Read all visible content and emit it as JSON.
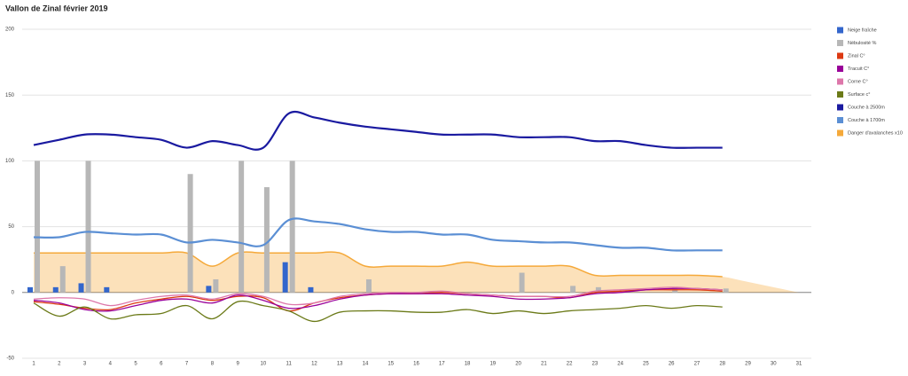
{
  "chart_data": {
    "type": "combo",
    "title": "Vallon de Zinal février 2019",
    "categories": [
      "1",
      "2",
      "3",
      "4",
      "5",
      "6",
      "7",
      "8",
      "9",
      "10",
      "11",
      "12",
      "13",
      "14",
      "15",
      "16",
      "17",
      "18",
      "19",
      "20",
      "21",
      "22",
      "23",
      "24",
      "25",
      "26",
      "27",
      "28",
      "29",
      "30",
      "31"
    ],
    "ylim": [
      -50,
      200
    ],
    "yticks": [
      -50,
      0,
      50,
      100,
      150,
      200
    ],
    "grid": true,
    "legend": "right",
    "series": [
      {
        "name": "Neige fraîche",
        "type": "bar",
        "color": "#3366cc",
        "values": [
          4,
          4,
          7,
          4,
          0,
          0,
          0,
          5,
          0,
          0,
          23,
          4,
          0,
          0,
          0,
          0,
          0,
          0,
          0,
          0,
          0,
          0,
          0,
          0,
          0,
          0,
          0,
          0,
          null,
          null,
          null
        ]
      },
      {
        "name": "Nébulosité %",
        "type": "bar",
        "color": "#b7b7b7",
        "values": [
          100,
          20,
          100,
          0,
          0,
          0,
          90,
          10,
          100,
          80,
          100,
          0,
          0,
          10,
          0,
          0,
          0,
          0,
          0,
          15,
          0,
          5,
          4,
          0,
          0,
          4,
          0,
          3,
          null,
          null,
          null
        ]
      },
      {
        "name": "Zinal C°",
        "type": "line",
        "color": "#dc3912",
        "values": [
          -7,
          -9,
          -12,
          -13,
          -8,
          -5,
          -3,
          -6,
          -3,
          -4,
          -14,
          -8,
          -4,
          -2,
          -1,
          -1,
          0,
          -1,
          -2,
          -3,
          -3,
          -4,
          0,
          1,
          2,
          2,
          2,
          1,
          null,
          null,
          null
        ]
      },
      {
        "name": "Tracuit C°",
        "type": "line",
        "color": "#990099",
        "values": [
          -6,
          -8,
          -13,
          -14,
          -10,
          -6,
          -5,
          -8,
          -2,
          -6,
          -12,
          -10,
          -5,
          -2,
          -1,
          -1,
          -1,
          -2,
          -3,
          -5,
          -5,
          -4,
          -1,
          0,
          2,
          3,
          3,
          2,
          null,
          null,
          null
        ]
      },
      {
        "name": "Corne C°",
        "type": "line",
        "color": "#dd77aa",
        "values": [
          -5,
          -4,
          -5,
          -10,
          -6,
          -3,
          -2,
          -5,
          -1,
          -3,
          -9,
          -8,
          -3,
          -1,
          0,
          0,
          1,
          -1,
          -2,
          -3,
          -3,
          -3,
          1,
          2,
          3,
          4,
          3,
          2,
          null,
          null,
          null
        ]
      },
      {
        "name": "Surface c°",
        "type": "line",
        "color": "#6b7a18",
        "values": [
          -8,
          -18,
          -11,
          -20,
          -17,
          -16,
          -10,
          -20,
          -7,
          -10,
          -14,
          -22,
          -15,
          -14,
          -14,
          -15,
          -15,
          -13,
          -16,
          -14,
          -16,
          -14,
          -13,
          -12,
          -10,
          -12,
          -10,
          -11,
          null,
          null,
          null
        ]
      },
      {
        "name": "Couche à 2500m",
        "type": "line",
        "color": "#1a1aa0",
        "values": [
          112,
          116,
          120,
          120,
          118,
          116,
          110,
          115,
          112,
          110,
          136,
          133,
          129,
          126,
          124,
          122,
          120,
          120,
          120,
          118,
          118,
          118,
          115,
          115,
          112,
          110,
          110,
          110,
          null,
          null,
          null
        ]
      },
      {
        "name": "Couche à 1700m",
        "type": "line",
        "color": "#5b8fd4",
        "values": [
          42,
          42,
          46,
          45,
          44,
          44,
          38,
          40,
          38,
          36,
          55,
          54,
          52,
          48,
          46,
          46,
          44,
          44,
          40,
          39,
          38,
          38,
          36,
          34,
          34,
          32,
          32,
          32,
          null,
          null,
          null
        ]
      },
      {
        "name": "Danger d'avalanches x10",
        "type": "area",
        "color": "#f5a93a",
        "values": [
          30,
          30,
          30,
          30,
          30,
          30,
          30,
          20,
          30,
          30,
          30,
          30,
          30,
          20,
          20,
          20,
          20,
          23,
          20,
          20,
          20,
          20,
          13,
          13,
          13,
          13,
          13,
          12,
          8,
          4,
          0
        ]
      }
    ]
  }
}
